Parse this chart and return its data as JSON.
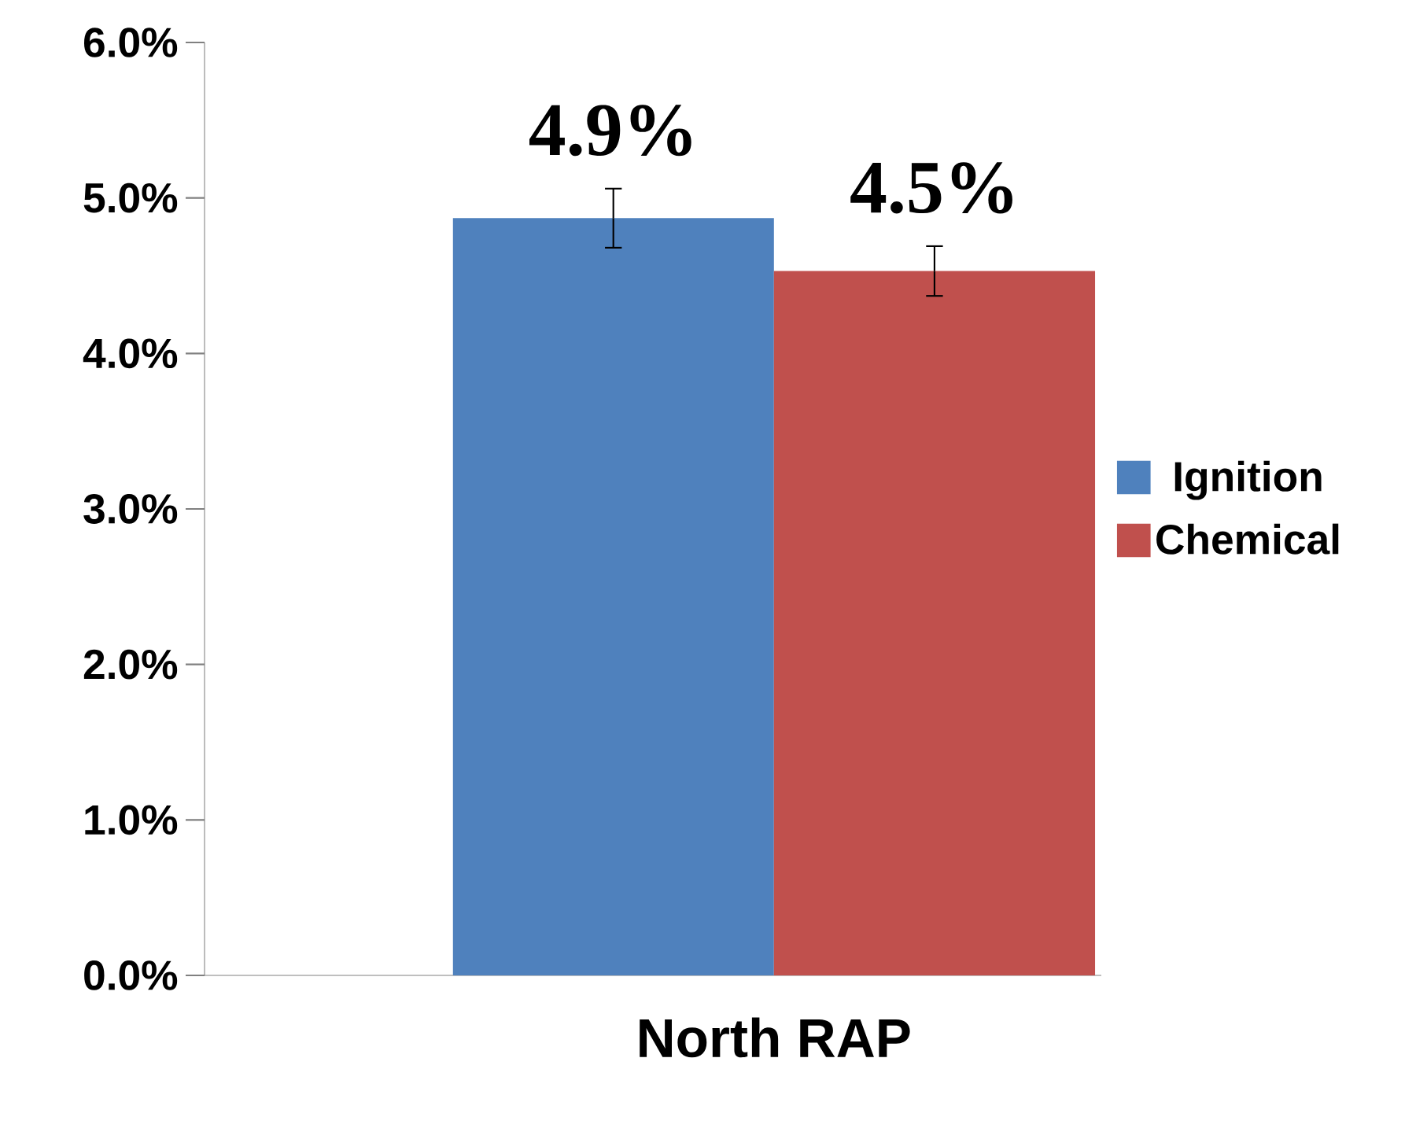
{
  "chart_data": {
    "type": "bar",
    "categories": [
      "North RAP"
    ],
    "series": [
      {
        "name": "Ignition",
        "color": "#4f81bd",
        "values": [
          4.87
        ],
        "errors": [
          0.19
        ],
        "value_labels": [
          "4.9%"
        ]
      },
      {
        "name": "Chemical",
        "color": "#c0504d",
        "values": [
          4.53
        ],
        "errors": [
          0.16
        ],
        "value_labels": [
          "4.5%"
        ]
      }
    ],
    "ylim": [
      0,
      6
    ],
    "yticks": [
      {
        "value": 0,
        "label": "0.0%"
      },
      {
        "value": 1,
        "label": "1.0%"
      },
      {
        "value": 2,
        "label": "2.0%"
      },
      {
        "value": 3,
        "label": "3.0%"
      },
      {
        "value": 4,
        "label": "4.0%"
      },
      {
        "value": 5,
        "label": "5.0%"
      },
      {
        "value": 6,
        "label": "6.0%"
      }
    ],
    "grid": false,
    "legend": "right"
  }
}
